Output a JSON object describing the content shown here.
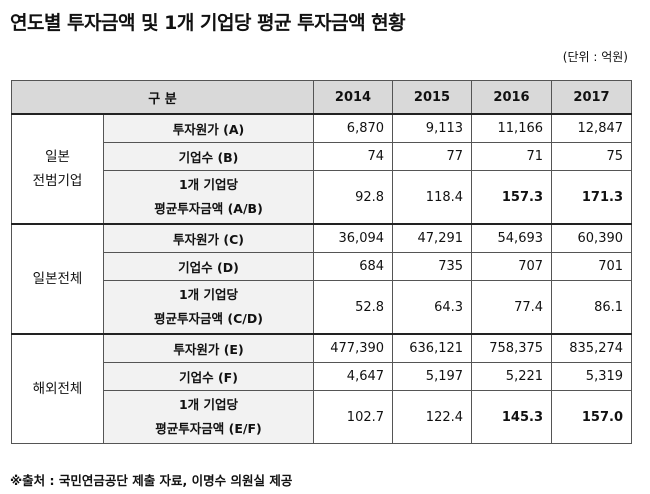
{
  "title": "연도별 투자금액 및 1개 기업당 평균 투자금액 현황",
  "unit": "(단위 : 억원)",
  "header": {
    "category": "구 분",
    "years": [
      "2014",
      "2015",
      "2016",
      "2017"
    ]
  },
  "groups": [
    {
      "name_line1": "일본",
      "name_line2": "전범기업",
      "rows": [
        {
          "label": "투자원가 (A)",
          "values": [
            "6,870",
            "9,113",
            "11,166",
            "12,847"
          ]
        },
        {
          "label": "기업수 (B)",
          "values": [
            "74",
            "77",
            "71",
            "75"
          ]
        },
        {
          "label_line1": "1개 기업당",
          "label_line2": "평균투자금액 (A/B)",
          "values": [
            "92.8",
            "118.4",
            "157.3",
            "171.3"
          ]
        }
      ]
    },
    {
      "name_line1": "일본전체",
      "rows": [
        {
          "label": "투자원가 (C)",
          "values": [
            "36,094",
            "47,291",
            "54,693",
            "60,390"
          ]
        },
        {
          "label": "기업수 (D)",
          "values": [
            "684",
            "735",
            "707",
            "701"
          ]
        },
        {
          "label_line1": "1개 기업당",
          "label_line2": "평균투자금액 (C/D)",
          "values": [
            "52.8",
            "64.3",
            "77.4",
            "86.1"
          ]
        }
      ]
    },
    {
      "name_line1": "해외전체",
      "rows": [
        {
          "label": "투자원가 (E)",
          "values": [
            "477,390",
            "636,121",
            "758,375",
            "835,274"
          ]
        },
        {
          "label": "기업수 (F)",
          "values": [
            "4,647",
            "5,197",
            "5,221",
            "5,319"
          ]
        },
        {
          "label_line1": "1개 기업당",
          "label_line2": "평균투자금액 (E/F)",
          "values": [
            "102.7",
            "122.4",
            "145.3",
            "157.0"
          ]
        }
      ]
    }
  ],
  "source": "※출처 : 국민연금공단 제출 자료, 이명수 의원실 제공"
}
